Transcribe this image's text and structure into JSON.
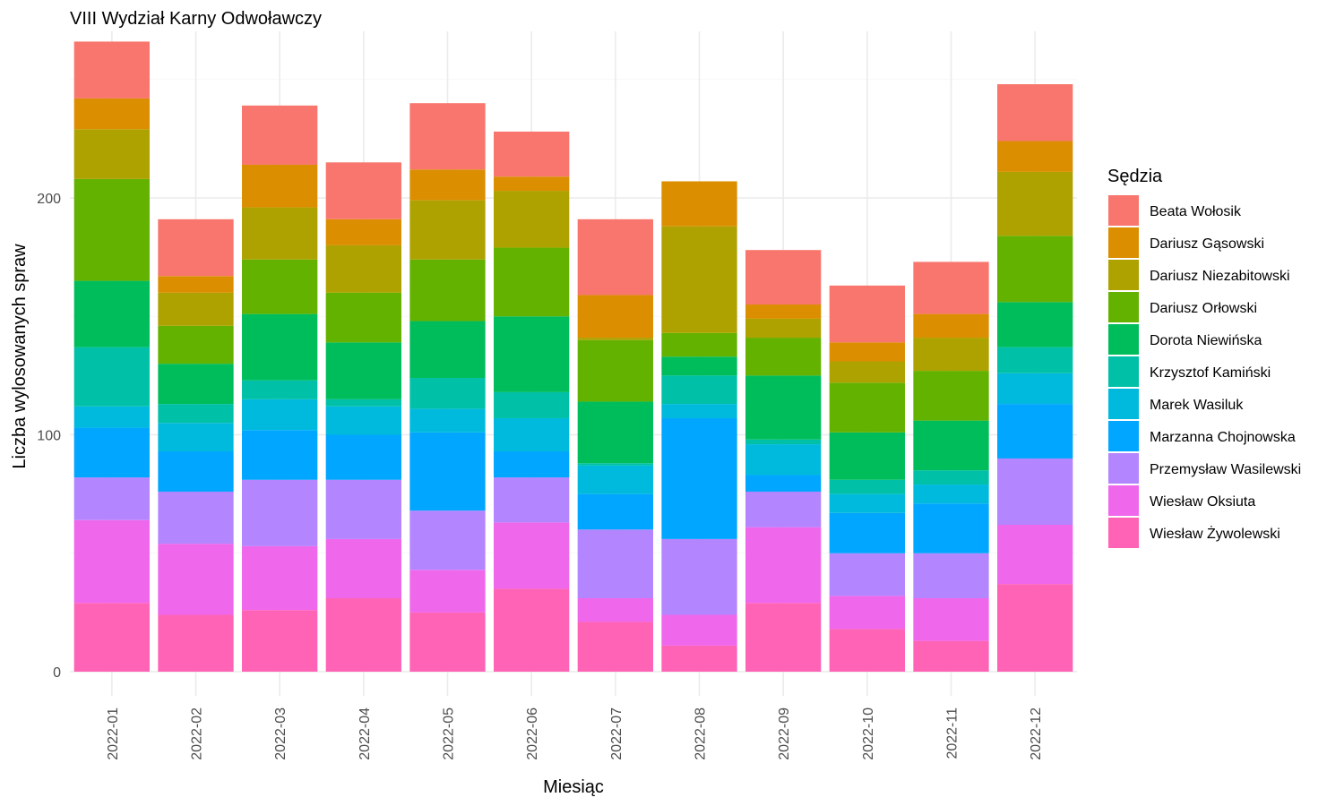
{
  "chart_data": {
    "type": "bar",
    "stacked": true,
    "title": "VIII Wydział Karny Odwoławczy",
    "xlabel": "Miesiąc",
    "ylabel": "Liczba wylosowanych spraw",
    "ylim": [
      0,
      270
    ],
    "yticks": [
      0,
      100,
      200
    ],
    "grid": true,
    "legend_title": "Sędzia",
    "legend_position": "right",
    "categories": [
      "2022-01",
      "2022-02",
      "2022-03",
      "2022-04",
      "2022-05",
      "2022-06",
      "2022-07",
      "2022-08",
      "2022-09",
      "2022-10",
      "2022-11",
      "2022-12"
    ],
    "series": [
      {
        "name": "Beata Wołosik",
        "color": "#F8766D",
        "values": [
          24,
          24,
          25,
          24,
          28,
          19,
          32,
          0,
          23,
          24,
          22,
          24
        ]
      },
      {
        "name": "Dariusz Gąsowski",
        "color": "#DB8E00",
        "values": [
          13,
          7,
          18,
          11,
          13,
          6,
          18,
          19,
          6,
          8,
          10,
          13
        ]
      },
      {
        "name": "Dariusz Niezabitowski",
        "color": "#AEA200",
        "values": [
          21,
          14,
          22,
          20,
          25,
          24,
          1,
          45,
          8,
          9,
          14,
          27
        ]
      },
      {
        "name": "Dariusz Orłowski",
        "color": "#64B200",
        "values": [
          43,
          16,
          23,
          21,
          26,
          29,
          26,
          10,
          16,
          21,
          21,
          28
        ]
      },
      {
        "name": "Dorota Niewińska",
        "color": "#00BD5C",
        "values": [
          28,
          17,
          28,
          24,
          24,
          32,
          26,
          8,
          27,
          20,
          21,
          19
        ]
      },
      {
        "name": "Krzysztof Kamiński",
        "color": "#00C1A7",
        "values": [
          25,
          8,
          8,
          3,
          13,
          11,
          1,
          12,
          2,
          6,
          6,
          11
        ]
      },
      {
        "name": "Marek Wasiluk",
        "color": "#00BADE",
        "values": [
          9,
          12,
          13,
          12,
          10,
          14,
          12,
          6,
          13,
          8,
          8,
          13
        ]
      },
      {
        "name": "Marzanna Chojnowska",
        "color": "#00A6FF",
        "values": [
          21,
          17,
          21,
          19,
          33,
          11,
          15,
          51,
          7,
          17,
          21,
          23
        ]
      },
      {
        "name": "Przemysław Wasilewski",
        "color": "#B385FF",
        "values": [
          18,
          22,
          28,
          25,
          25,
          19,
          29,
          32,
          15,
          18,
          19,
          28
        ]
      },
      {
        "name": "Wiesław Oksiuta",
        "color": "#EF67EB",
        "values": [
          35,
          30,
          27,
          25,
          18,
          28,
          10,
          13,
          32,
          14,
          18,
          25
        ]
      },
      {
        "name": "Wiesław Żywolewski",
        "color": "#FF63B6",
        "values": [
          29,
          24,
          26,
          31,
          25,
          35,
          21,
          11,
          29,
          18,
          13,
          37
        ]
      }
    ]
  }
}
